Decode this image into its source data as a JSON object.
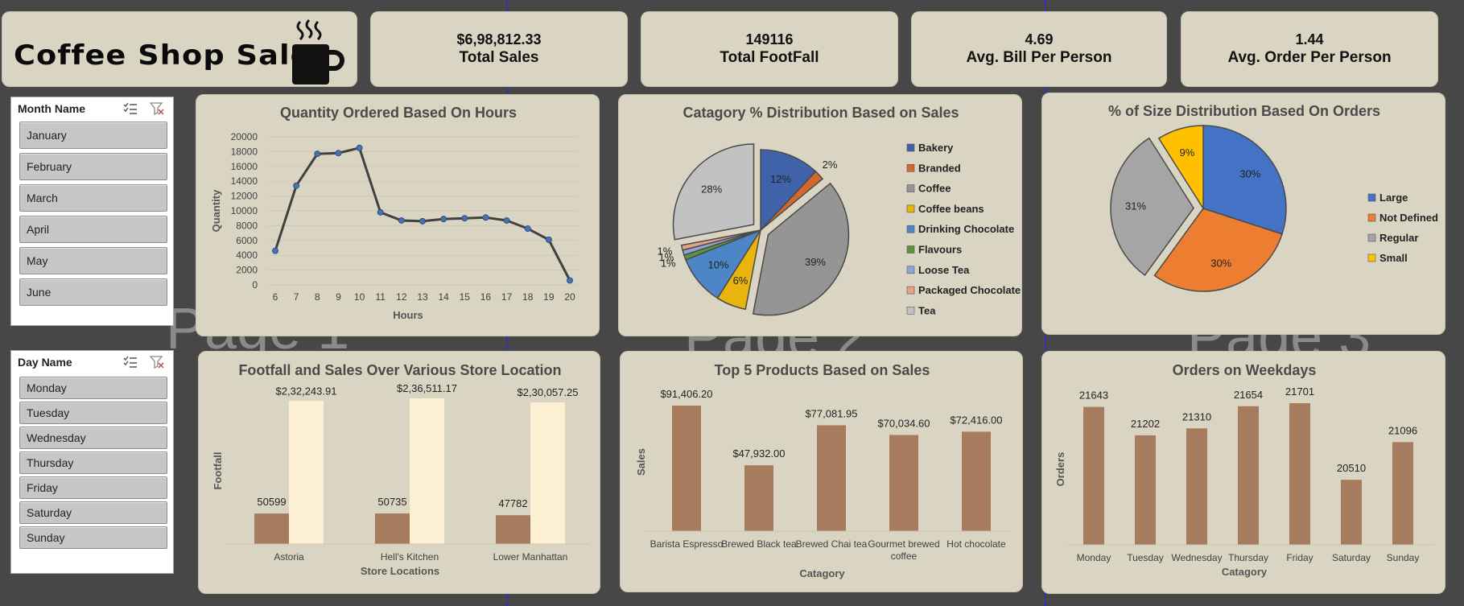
{
  "dashboard": {
    "title": "Coffee Shop Sales",
    "logo_icon": "coffee-cup-icon"
  },
  "kpis": [
    {
      "value": "$6,98,812.33",
      "label": "Total Sales"
    },
    {
      "value": "149116",
      "label": "Total FootFall"
    },
    {
      "value": "4.69",
      "label": "Avg. Bill Per Person"
    },
    {
      "value": "1.44",
      "label": "Avg. Order Per Person"
    }
  ],
  "slicers": {
    "month": {
      "header": "Month Name",
      "items": [
        "January",
        "February",
        "March",
        "April",
        "May",
        "June"
      ]
    },
    "day": {
      "header": "Day Name",
      "items": [
        "Monday",
        "Tuesday",
        "Wednesday",
        "Thursday",
        "Friday",
        "Saturday",
        "Sunday"
      ]
    }
  },
  "watermarks": [
    "Page 1",
    "Page 2",
    "Page 3"
  ],
  "colors": {
    "background": "#474747",
    "card": "#dad5c3",
    "bar_brown": "#a67b5e",
    "bar_cream": "#fdefd2",
    "line": "#404040",
    "marker": "#4a72b0"
  },
  "chart_data": [
    {
      "id": "hours",
      "type": "line",
      "title": "Quantity Ordered Based On Hours",
      "xlabel": "Hours",
      "ylabel": "Quantity",
      "x": [
        6,
        7,
        8,
        9,
        10,
        11,
        12,
        13,
        14,
        15,
        16,
        17,
        18,
        19,
        20
      ],
      "values": [
        4600,
        13400,
        17700,
        17800,
        18500,
        9800,
        8700,
        8600,
        8900,
        9000,
        9100,
        8700,
        7600,
        6100,
        600
      ],
      "ylim": [
        0,
        20000
      ],
      "yticks": [
        0,
        2000,
        4000,
        6000,
        8000,
        10000,
        12000,
        14000,
        16000,
        18000,
        20000
      ]
    },
    {
      "id": "category",
      "type": "pie",
      "title": "Catagory % Distribution Based on Sales",
      "categories": [
        "Bakery",
        "Branded",
        "Coffee",
        "Coffee beans",
        "Drinking Chocolate",
        "Flavours",
        "Loose Tea",
        "Packaged Chocolate",
        "Tea"
      ],
      "values": [
        12,
        2,
        39,
        6,
        10,
        1,
        1,
        1,
        28
      ],
      "labels": [
        "12%",
        "2%",
        "39%",
        "6%",
        "10%",
        "1%",
        "1%",
        "1%",
        "28%"
      ],
      "colors": [
        "#3f62a8",
        "#d2692c",
        "#959595",
        "#e8b40d",
        "#4d86c6",
        "#5e9440",
        "#8fa5d8",
        "#e8a08a",
        "#c2c2c2"
      ],
      "exploded": [
        "Coffee",
        "Tea"
      ]
    },
    {
      "id": "size",
      "type": "pie",
      "title": "% of Size Distribution Based On Orders",
      "categories": [
        "Large",
        "Not Defined",
        "Regular",
        "Small"
      ],
      "values": [
        30,
        30,
        31,
        9
      ],
      "labels": [
        "30%",
        "30%",
        "31%",
        "9%"
      ],
      "colors": [
        "#4472c4",
        "#ed7d31",
        "#a5a5a5",
        "#ffc000"
      ],
      "exploded": [
        "Regular"
      ]
    },
    {
      "id": "stores",
      "type": "bar",
      "title": "Footfall and Sales Over Various Store Location",
      "xlabel": "Store Locations",
      "ylabel": "Footfall",
      "categories": [
        "Astoria",
        "Hell's Kitchen",
        "Lower Manhattan"
      ],
      "series": [
        {
          "name": "Footfall",
          "values": [
            50599,
            50735,
            47782
          ],
          "labels": [
            "50599",
            "50735",
            "47782"
          ]
        },
        {
          "name": "Sales",
          "values": [
            232243.91,
            236511.17,
            230057.25
          ],
          "labels": [
            "$2,32,243.91",
            "$2,36,511.17",
            "$2,30,057.25"
          ]
        }
      ]
    },
    {
      "id": "products",
      "type": "bar",
      "title": "Top 5 Products Based on Sales",
      "xlabel": "Catagory",
      "ylabel": "Sales",
      "categories": [
        "Barista Espresso",
        "Brewed Black tea",
        "Brewed Chai tea",
        "Gourmet brewed coffee",
        "Hot chocolate"
      ],
      "values": [
        91406.2,
        47932.0,
        77081.95,
        70034.6,
        72416.0
      ],
      "labels": [
        "$91,406.20",
        "$47,932.00",
        "$77,081.95",
        "$70,034.60",
        "$72,416.00"
      ]
    },
    {
      "id": "weekdays",
      "type": "bar",
      "title": "Orders on Weekdays",
      "xlabel": "Catagory",
      "ylabel": "Orders",
      "categories": [
        "Monday",
        "Tuesday",
        "Wednesday",
        "Thursday",
        "Friday",
        "Saturday",
        "Sunday"
      ],
      "values": [
        21643,
        21202,
        21310,
        21654,
        21701,
        20510,
        21096
      ],
      "labels": [
        "21643",
        "21202",
        "21310",
        "21654",
        "21701",
        "20510",
        "21096"
      ]
    }
  ]
}
